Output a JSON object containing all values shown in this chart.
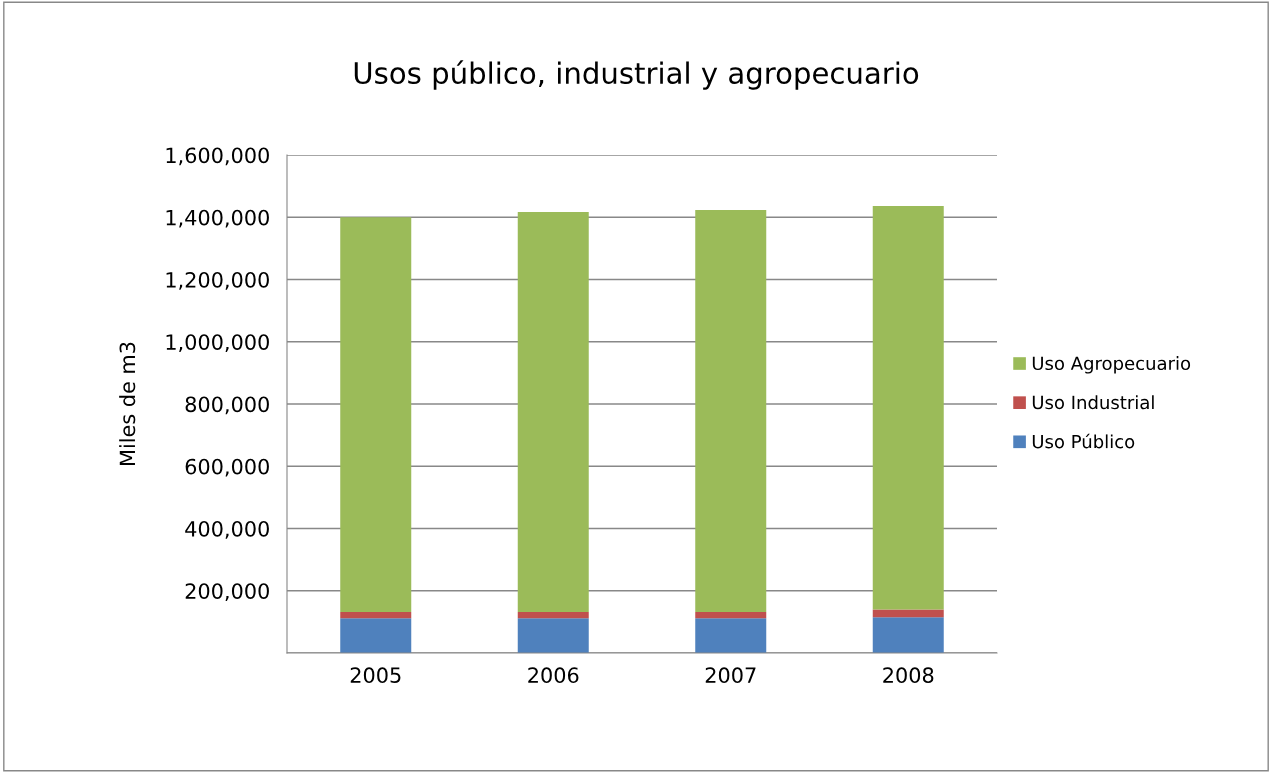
{
  "chart_data": {
    "type": "bar",
    "title": "Usos público, industrial y agropecuario",
    "ylabel": "Miles de m3",
    "categories": [
      "2005",
      "2006",
      "2007",
      "2008"
    ],
    "stacked": true,
    "series": [
      {
        "name": "Uso Público",
        "color": "#4f81bd",
        "values": [
          112000,
          112000,
          112000,
          115000
        ]
      },
      {
        "name": "Uso Industrial",
        "color": "#c0504d",
        "values": [
          20000,
          20000,
          20000,
          25000
        ]
      },
      {
        "name": "Uso Agropecuario",
        "color": "#9bbb59",
        "values": [
          1268000,
          1285000,
          1291000,
          1296000
        ]
      }
    ],
    "ylim": [
      0,
      1600000
    ],
    "yticks": [
      {
        "value": 0,
        "label": null
      },
      {
        "value": 200000,
        "label": "200,000"
      },
      {
        "value": 400000,
        "label": "400,000"
      },
      {
        "value": 600000,
        "label": "600,000"
      },
      {
        "value": 800000,
        "label": "800,000"
      },
      {
        "value": 1000000,
        "label": "1,000,000"
      },
      {
        "value": 1200000,
        "label": "1,200,000"
      },
      {
        "value": 1400000,
        "label": "1,400,000"
      },
      {
        "value": 1600000,
        "label": "1,600,000"
      }
    ],
    "grid": "y",
    "legend": "right"
  }
}
